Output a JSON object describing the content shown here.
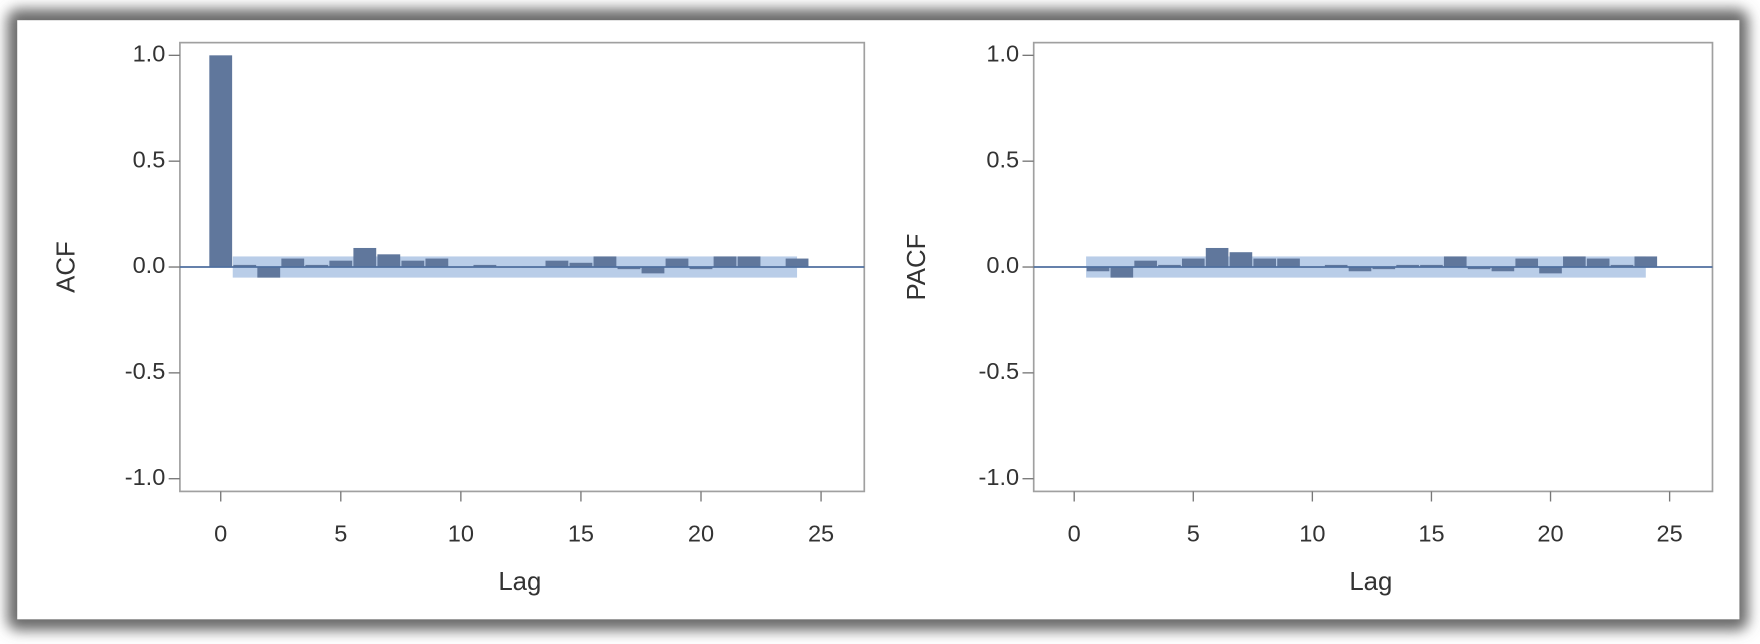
{
  "chart_data": [
    {
      "type": "bar",
      "ylabel": "ACF",
      "xlabel": "Lag",
      "x": [
        0,
        1,
        2,
        3,
        4,
        5,
        6,
        7,
        8,
        9,
        10,
        11,
        12,
        13,
        14,
        15,
        16,
        17,
        18,
        19,
        20,
        21,
        22,
        23,
        24
      ],
      "values": [
        1.0,
        0.01,
        -0.05,
        0.04,
        0.01,
        0.03,
        0.09,
        0.06,
        0.03,
        0.04,
        0.0,
        0.01,
        0.0,
        0.0,
        0.03,
        0.02,
        0.05,
        -0.01,
        -0.03,
        0.04,
        -0.01,
        0.05,
        0.05,
        0.0,
        0.04
      ],
      "color": "#60779c",
      "confidence_band": [
        -0.05,
        0.05
      ],
      "band_color": "#b9cde8",
      "xlim": [
        -1.7,
        26.8
      ],
      "ylim": [
        -1.06,
        1.06
      ],
      "xticks": [
        0,
        5,
        10,
        15,
        20,
        25
      ],
      "yticks": [
        {
          "value": 1,
          "label": "1.0"
        },
        {
          "value": 0.5,
          "label": "0.5"
        },
        {
          "value": 0,
          "label": "0.0"
        },
        {
          "value": -0.5,
          "label": "-0.5"
        },
        {
          "value": -1,
          "label": "-1.0"
        }
      ]
    },
    {
      "type": "bar",
      "ylabel": "PACF",
      "xlabel": "Lag",
      "x": [
        1,
        2,
        3,
        4,
        5,
        6,
        7,
        8,
        9,
        10,
        11,
        12,
        13,
        14,
        15,
        16,
        17,
        18,
        19,
        20,
        21,
        22,
        23,
        24
      ],
      "values": [
        -0.02,
        -0.05,
        0.03,
        0.01,
        0.04,
        0.09,
        0.07,
        0.04,
        0.04,
        0.0,
        0.01,
        -0.02,
        -0.01,
        0.01,
        0.01,
        0.05,
        -0.01,
        -0.02,
        0.04,
        -0.03,
        0.05,
        0.04,
        0.01,
        0.05
      ],
      "color": "#60779c",
      "confidence_band": [
        -0.05,
        0.05
      ],
      "band_color": "#b9cde8",
      "xlim": [
        -1.7,
        26.8
      ],
      "ylim": [
        -1.06,
        1.06
      ],
      "xticks": [
        0,
        5,
        10,
        15,
        20,
        25
      ],
      "yticks": [
        {
          "value": 1,
          "label": "1.0"
        },
        {
          "value": 0.5,
          "label": "0.5"
        },
        {
          "value": 0,
          "label": "0.0"
        },
        {
          "value": -0.5,
          "label": "-0.5"
        },
        {
          "value": -1,
          "label": "-1.0"
        }
      ]
    }
  ]
}
